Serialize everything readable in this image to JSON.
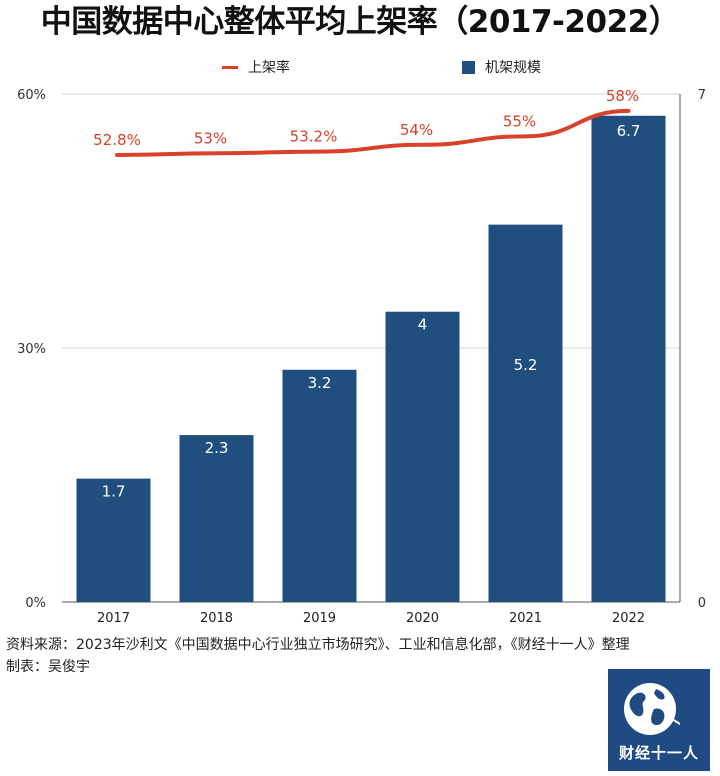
{
  "chart_data": {
    "type": "bar+line",
    "title": "中国数据中心整体平均上架率（2017-2022）",
    "categories": [
      "2017",
      "2018",
      "2019",
      "2020",
      "2021",
      "2022"
    ],
    "series": [
      {
        "name": "机架规模",
        "type": "bar",
        "axis": "right",
        "values": [
          1.7,
          2.3,
          3.2,
          4,
          5.2,
          6.7
        ],
        "labels": [
          "1.7",
          "2.3",
          "3.2",
          "4",
          "5.2",
          "6.7"
        ]
      },
      {
        "name": "上架率",
        "type": "line",
        "axis": "left",
        "values": [
          52.8,
          53,
          53.2,
          54,
          55,
          58
        ],
        "labels": [
          "52.8%",
          "53%",
          "53.2%",
          "54%",
          "55%",
          "58%"
        ]
      }
    ],
    "y_left": {
      "range": [
        0,
        60
      ],
      "ticks": [
        "0%",
        "30%",
        "60%"
      ]
    },
    "y_right": {
      "range": [
        0,
        7
      ],
      "ticks": [
        "0",
        "7"
      ]
    },
    "legend_position": "top",
    "grid": true,
    "colors": {
      "bar": "#1f4e7f",
      "line": "#d9412b"
    }
  },
  "footer": {
    "source": "资料来源：2023年沙利文《中国数据中心行业独立市场研究》、工业和信息化部，《财经十一人》整理",
    "maker": "制表：吴俊宇"
  },
  "badge": {
    "text": "财经十一人",
    "icon": "globe-icon"
  }
}
